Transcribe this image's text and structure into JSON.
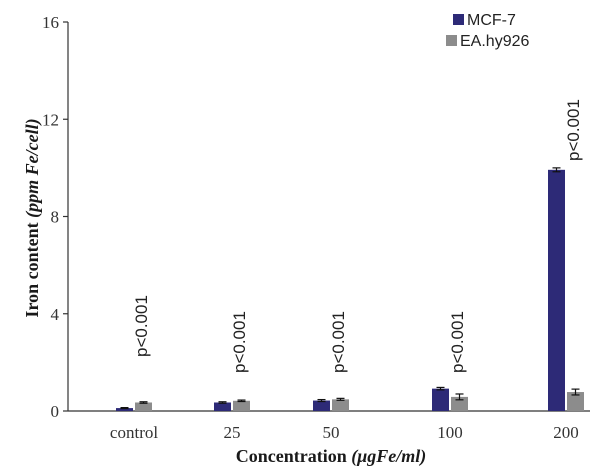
{
  "chart_data": {
    "type": "bar",
    "title": "",
    "xlabel": "Concentration (μgFe/ml)",
    "ylabel_plain": "Iron content ",
    "ylabel_italic": "(ppm Fe/cell)",
    "xlabel_plain": "Concentration ",
    "xlabel_italic": "(μgFe/ml)",
    "categories": [
      "control",
      "25",
      "50",
      "100",
      "200"
    ],
    "ylim": [
      0,
      16
    ],
    "yticks": [
      0,
      4,
      8,
      12,
      16
    ],
    "grid": false,
    "legend_position": "top-right",
    "series": [
      {
        "name": "MCF-7",
        "color": "#2d2a77",
        "values": [
          0.12,
          0.35,
          0.43,
          0.92,
          9.92
        ],
        "errors": [
          0.02,
          0.03,
          0.04,
          0.05,
          0.08
        ]
      },
      {
        "name": "EA.hy926",
        "color": "#8c8c8c",
        "values": [
          0.35,
          0.42,
          0.48,
          0.58,
          0.78
        ],
        "errors": [
          0.03,
          0.03,
          0.04,
          0.12,
          0.12
        ]
      }
    ],
    "annotations": [
      "p<0.001",
      "p<0.001",
      "p<0.001",
      "p<0.001",
      "p<0.001"
    ]
  }
}
